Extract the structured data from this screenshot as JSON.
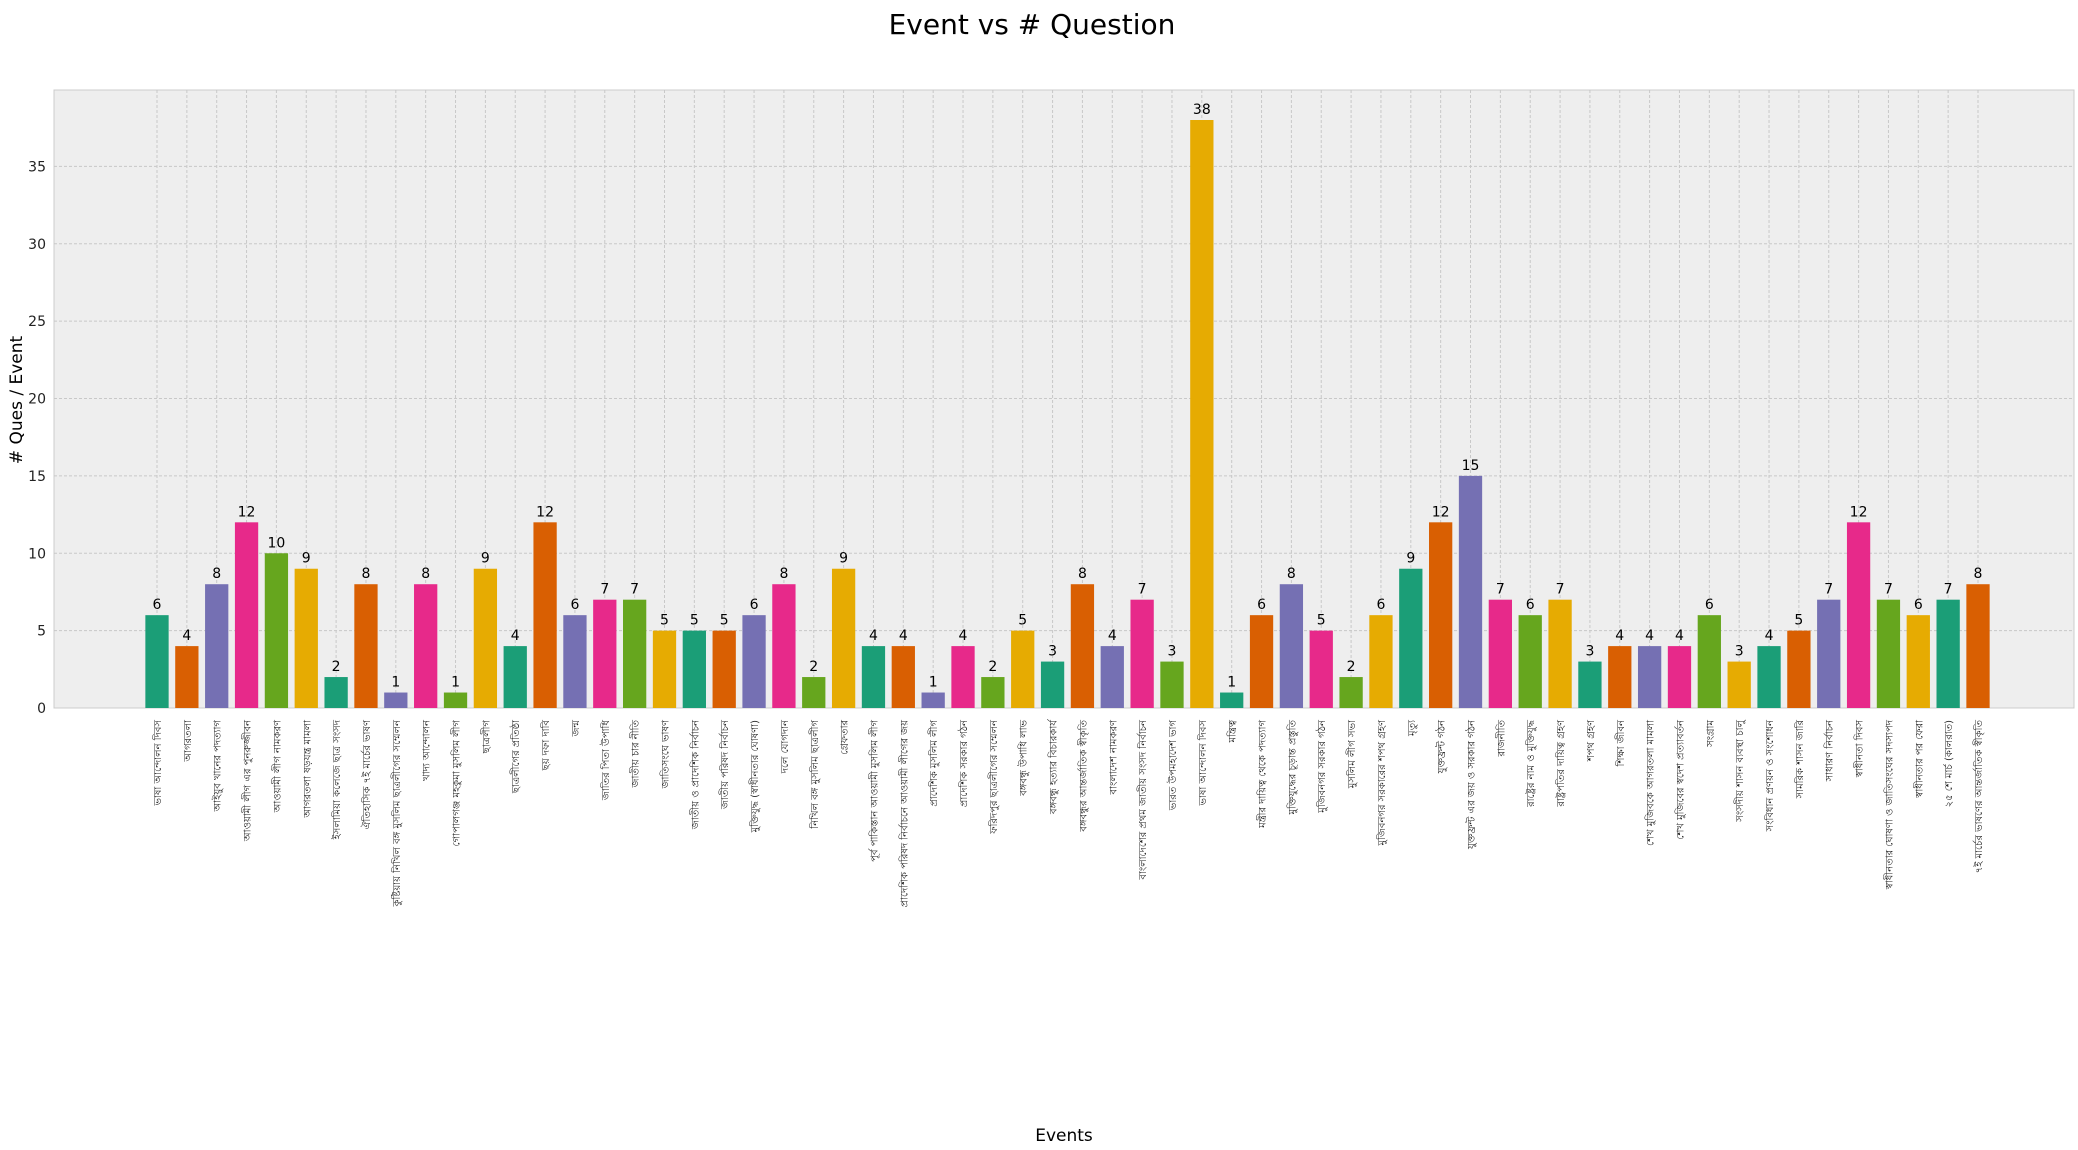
{
  "chart_data": {
    "type": "bar",
    "title": "Event vs # Question",
    "xlabel": "Events",
    "ylabel": "# Ques / Event",
    "ylim": [
      0,
      40
    ],
    "yticks": [
      0,
      5,
      10,
      15,
      20,
      25,
      30,
      35
    ],
    "grid": true,
    "colors": [
      "#1b9e77",
      "#d95f02",
      "#7570b3",
      "#e7298a",
      "#66a61e",
      "#e6ab02"
    ],
    "categories": [
      "ভাষা আন্দোলন দিবস",
      "আগরতলা",
      "আইয়ুব খানের পদত্যাগ",
      "আওয়ামী লীগ এর পুনরুজ্জীবন",
      "আওয়ামী লীগ নামকরণ",
      "আগরতলা ষড়যন্ত্র মামলা",
      "ইসলামিয়া কলেজে ছাত্র সংসদ",
      "ঐতিহাসিক ৭ই মার্চের ভাষণ",
      "কুষ্টিয়ায় নিখিল বঙ্গ মুসলিম ছাত্রলীগের সম্মেলন",
      "খাদ্য আন্দোলন",
      "গোপালগঞ্জ মহকুমা মুসলিম লীগ",
      "ছাত্রলীগ",
      "ছাত্রলীগের প্রতিষ্ঠা",
      "ছয় দফা দাবি",
      "জন্ম",
      "জাতির পিতা উপাধি",
      "জাতীয় চার নীতি",
      "জাতিসংঘে ভাষণ",
      "জাতীয় ও প্রাদেশিক নির্বাচন",
      "জাতীয় পরিষদ নির্বাচন",
      "মুক্তিযুদ্ধ (স্বাধীনতার ঘোষণা)",
      "দলে যোগদান",
      "নিখিল বঙ্গ মুসলিম ছাত্রলীগ",
      "গ্রেফতার",
      "পূর্ব পাকিস্তান আওয়ামী মুসলিম লীগ",
      "প্রাদেশিক পরিষদ নির্বাচনে আওয়ামী লীগের জয়",
      "প্রাদেশিক মুসলিম লীগ",
      "প্রাদেশিক সরকার গঠন",
      "ফরিদপুর ছাত্রলীগের সম্মেলন",
      "বঙ্গবন্ধু উপাধি লাভ",
      "বঙ্গবন্ধু হত্যার বিচারকার্য",
      "বঙ্গবন্ধুর আন্তর্জাতিক স্বীকৃতি",
      "বাংলাদেশ নামকরণ",
      "বাংলাদেশের প্রথম জাতীয় সংসদ নির্বাচন",
      "ভারত উপমহাদেশ ভাগ",
      "ভাষা আন্দোলন দিবস",
      "মন্ত্রিত্ব",
      "মন্ত্রীর দায়িত্ব থেকে পদত্যাগ",
      "মুক্তিযুদ্ধের চূড়ান্ত প্রস্তুতি",
      "মুজিবনগর সরকার গঠন",
      "মুসলিম লীগ সভা",
      "মুজিবনগর সরকারের শপথ গ্রহণ",
      "মৃত্যু",
      "যুক্তফ্রন্ট গঠন",
      "যুক্তফ্রন্ট এর জয় ও সরকার গঠন",
      "রাজনীতি",
      "রাষ্ট্রের নাম ও মুক্তিযুদ্ধ",
      "রাষ্ট্রপতির দায়িত্ব গ্রহণ",
      "শপথ গ্রহণ",
      "শিক্ষা জীবন",
      "শেখ মুজিবকে আগরতলা মামলা",
      "শেখ মুজিবের স্বদেশ প্রত্যাবর্তন",
      "সংগ্রাম",
      "সংসদীয় শাসন ব্যবস্থা চালু",
      "সংবিধান প্রণয়ন ও সংশোধন",
      "সামরিক শাসন জারি",
      "সাধারণ নির্বাচন",
      "স্বাধীনতা দিবস",
      "স্বাধীনতার ঘোষণা ও জাতিসংঘের সদস্যপদ",
      "স্বাধীনতার পর ফেরা",
      "২৫ শে মার্চ (কালরাত)",
      "৭ই মার্চের ভাষণের আন্তর্জাতিক স্বীকৃতি"
    ],
    "values": [
      6,
      4,
      8,
      12,
      10,
      9,
      2,
      8,
      1,
      8,
      1,
      9,
      4,
      12,
      6,
      7,
      7,
      5,
      5,
      5,
      6,
      8,
      2,
      9,
      4,
      4,
      1,
      4,
      2,
      5,
      3,
      8,
      4,
      7,
      3,
      38,
      1,
      6,
      8,
      5,
      2,
      6,
      9,
      12,
      15,
      7,
      6,
      7,
      3,
      4,
      4,
      4,
      6,
      3,
      4,
      5,
      7,
      12,
      7,
      6,
      7,
      8
    ]
  }
}
